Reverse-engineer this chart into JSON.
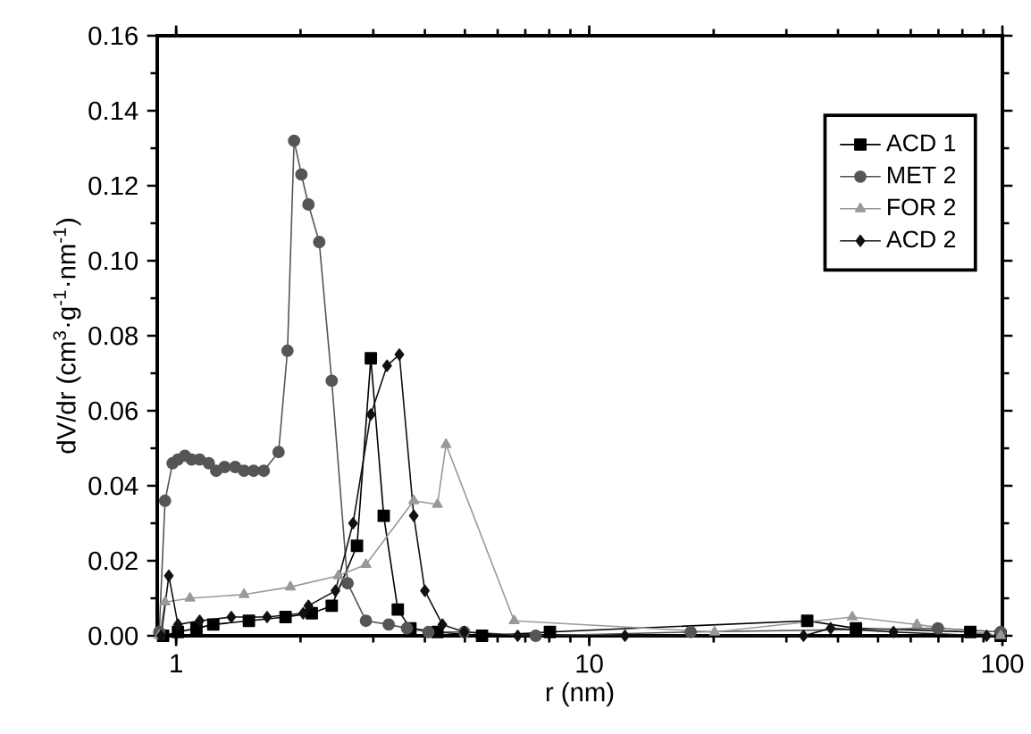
{
  "chart_data": {
    "type": "line",
    "xlabel": "r (nm)",
    "ylabel": "dV/dr (cm$^{3}$·g$^{-1}$·nm$^{-1}$)",
    "log": "x",
    "xlim": [
      0.9,
      100
    ],
    "ylim": [
      0,
      0.16
    ],
    "xticks": [
      1,
      10,
      100
    ],
    "yticks": [
      {
        "value": 0,
        "label": "0.00"
      },
      {
        "value": 0.02,
        "label": "0.02"
      },
      {
        "value": 0.04,
        "label": "0.04"
      },
      {
        "value": 0.06,
        "label": "0.06"
      },
      {
        "value": 0.08,
        "label": "0.08"
      },
      {
        "value": 0.1,
        "label": "0.10"
      },
      {
        "value": 0.12,
        "label": "0.12"
      },
      {
        "value": 0.14,
        "label": "0.14"
      },
      {
        "value": 0.16,
        "label": "0.16"
      }
    ],
    "grid": false,
    "legend": "top right",
    "line_style": "solid",
    "series": [
      {
        "name": "ACD 1",
        "color": "#000000",
        "marker": "square",
        "x": [
          0.93,
          1.01,
          1.12,
          1.23,
          1.5,
          1.84,
          2.13,
          2.38,
          2.74,
          2.96,
          3.18,
          3.44,
          3.69,
          4.29,
          5.5,
          8.03,
          33.7,
          44.2,
          83.6,
          99
        ],
        "values": [
          0.0,
          0.001,
          0.002,
          0.003,
          0.004,
          0.005,
          0.006,
          0.008,
          0.024,
          0.074,
          0.032,
          0.007,
          0.002,
          0.001,
          0.0,
          0.001,
          0.004,
          0.002,
          0.001,
          0.0
        ]
      },
      {
        "name": "MET 2",
        "color": "#555555",
        "marker": "circle",
        "x": [
          0.91,
          0.94,
          0.98,
          1.01,
          1.05,
          1.09,
          1.14,
          1.2,
          1.25,
          1.31,
          1.39,
          1.46,
          1.54,
          1.63,
          1.77,
          1.86,
          1.93,
          2.01,
          2.09,
          2.22,
          2.38,
          2.6,
          2.88,
          3.27,
          3.62,
          4.08,
          4.98,
          7.42,
          17.6,
          69.8,
          99
        ],
        "values": [
          0.001,
          0.036,
          0.046,
          0.047,
          0.048,
          0.047,
          0.047,
          0.046,
          0.044,
          0.045,
          0.045,
          0.044,
          0.044,
          0.044,
          0.049,
          0.076,
          0.132,
          0.123,
          0.115,
          0.105,
          0.068,
          0.014,
          0.004,
          0.003,
          0.002,
          0.001,
          0.001,
          0.0,
          0.001,
          0.002,
          0.001
        ]
      },
      {
        "name": "FOR 2",
        "color": "#999999",
        "marker": "triangle",
        "x": [
          0.91,
          0.94,
          1.08,
          1.46,
          1.89,
          2.47,
          2.88,
          3.76,
          4.29,
          4.5,
          6.58,
          20.1,
          43.3,
          62.1,
          99
        ],
        "values": [
          0.0,
          0.009,
          0.01,
          0.011,
          0.013,
          0.016,
          0.019,
          0.036,
          0.035,
          0.051,
          0.004,
          0.001,
          0.005,
          0.003,
          0.0
        ]
      },
      {
        "name": "ACD 2",
        "color": "#111111",
        "marker": "diamond",
        "x": [
          0.92,
          0.96,
          1.01,
          1.14,
          1.36,
          1.66,
          2.03,
          2.09,
          2.43,
          2.68,
          2.96,
          3.24,
          3.47,
          3.76,
          4.0,
          4.41,
          4.98,
          6.71,
          12.2,
          33.0,
          38.4,
          54.5,
          91.6
        ],
        "values": [
          0.0,
          0.016,
          0.003,
          0.004,
          0.005,
          0.005,
          0.006,
          0.008,
          0.012,
          0.03,
          0.059,
          0.072,
          0.075,
          0.032,
          0.012,
          0.003,
          0.001,
          0.0,
          0.0,
          0.0,
          0.002,
          0.001,
          0.0
        ]
      }
    ]
  }
}
